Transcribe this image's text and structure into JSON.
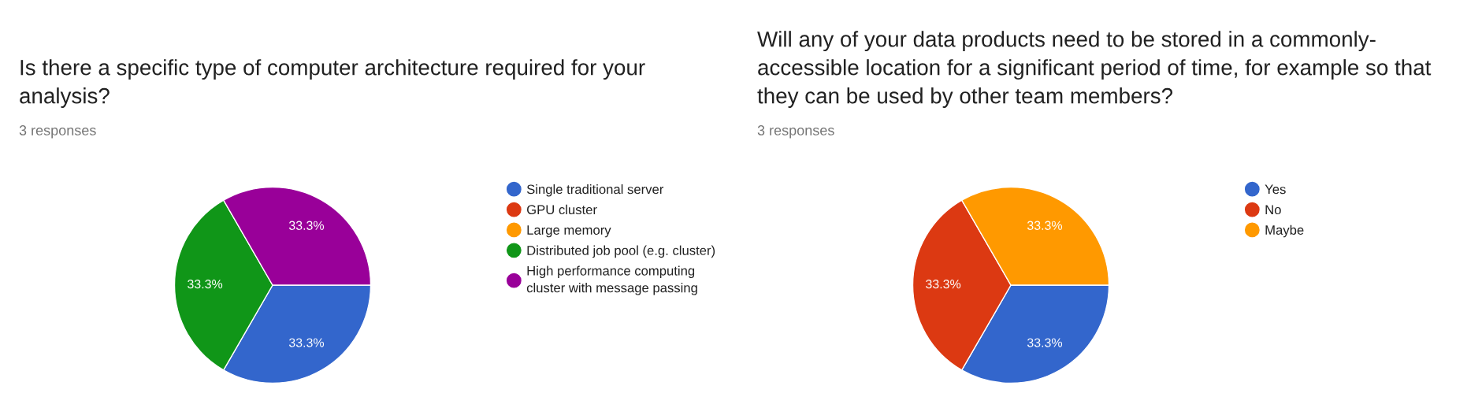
{
  "chart_data": [
    {
      "type": "pie",
      "title": "Is there a specific type of computer architecture required for your analysis?",
      "subtitle": "3 responses",
      "categories": [
        "Single traditional server",
        "GPU cluster",
        "Large memory",
        "Distributed job pool (e.g. cluster)",
        "High performance computing cluster with message passing"
      ],
      "values": [
        33.3,
        0,
        0,
        33.3,
        33.3
      ],
      "colors": [
        "#3366cc",
        "#dc3912",
        "#ff9900",
        "#109618",
        "#990099"
      ],
      "value_labels": [
        "33.3%",
        null,
        null,
        "33.3%",
        "33.3%"
      ],
      "legend": "right"
    },
    {
      "type": "pie",
      "title": "Will any of your data products need to be stored in a commonly-accessible location for a significant period of time, for example so that they can be used by other team members?",
      "subtitle": "3 responses",
      "categories": [
        "Yes",
        "No",
        "Maybe"
      ],
      "values": [
        33.3,
        33.3,
        33.3
      ],
      "colors": [
        "#3366cc",
        "#dc3912",
        "#ff9900"
      ],
      "value_labels": [
        "33.3%",
        "33.3%",
        "33.3%"
      ],
      "legend": "right"
    }
  ]
}
